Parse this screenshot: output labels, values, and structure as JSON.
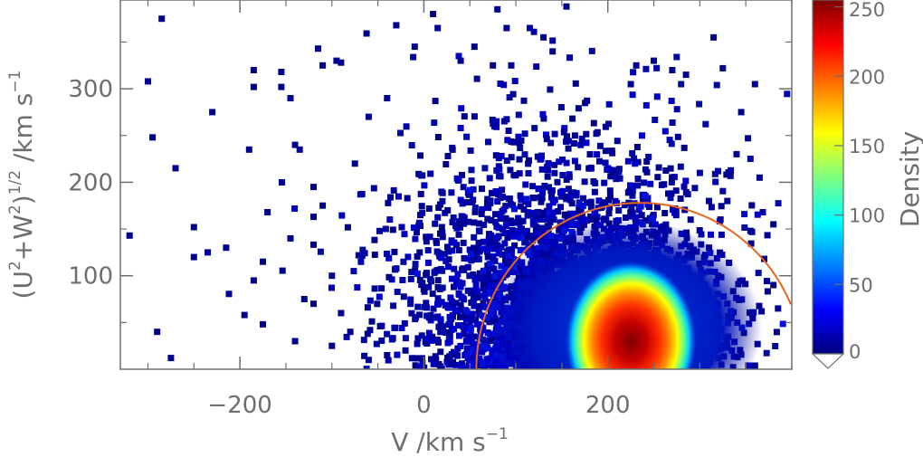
{
  "chart_data": {
    "type": "heatmap",
    "title": "",
    "xlabel": {
      "main": "V /km s",
      "sup": "−1"
    },
    "ylabel": {
      "p1": "(U",
      "s1": "2",
      "p2": "+W",
      "s2": "2",
      "p3": ")",
      "s3": "1/2",
      "p4": " /km s",
      "s4": "−1"
    },
    "xlim": [
      -330,
      400
    ],
    "ylim": [
      0,
      395
    ],
    "x_ticks": [
      -200,
      0,
      200
    ],
    "x_tick_labels": [
      "−200",
      "0",
      "200"
    ],
    "y_ticks": [
      100,
      200,
      300
    ],
    "y_tick_labels": [
      "100",
      "200",
      "300"
    ],
    "colorbar": {
      "label": "Density",
      "range": [
        0,
        255
      ],
      "ticks": [
        0,
        50,
        100,
        150,
        200,
        250
      ],
      "tick_labels": [
        "0",
        "50",
        "100",
        "150",
        "200",
        "250"
      ],
      "colormap": [
        "#00007f",
        "#0000ff",
        "#0080ff",
        "#00ffff",
        "#80ff80",
        "#ffff00",
        "#ff8000",
        "#ff0000",
        "#7f0000"
      ]
    },
    "density_peak": {
      "x": 225,
      "y": 30,
      "value": 250
    },
    "curve": {
      "type": "semicircle",
      "center_x": 235,
      "center_y": 0,
      "radius": 178,
      "color": "#e8671f"
    },
    "outlier_points": [
      [
        -285,
        375
      ],
      [
        -300,
        308
      ],
      [
        -295,
        248
      ],
      [
        -270,
        215
      ],
      [
        -230,
        275
      ],
      [
        -190,
        235
      ],
      [
        -185,
        302
      ],
      [
        -185,
        320
      ],
      [
        -155,
        318
      ],
      [
        -155,
        302
      ],
      [
        -145,
        290
      ],
      [
        -115,
        343
      ],
      [
        -110,
        325
      ],
      [
        -90,
        328
      ],
      [
        -250,
        152
      ],
      [
        -215,
        130
      ],
      [
        -250,
        120
      ],
      [
        -235,
        125
      ],
      [
        -195,
        58
      ],
      [
        -185,
        95
      ],
      [
        -175,
        48
      ],
      [
        -290,
        40
      ],
      [
        -275,
        12
      ],
      [
        -320,
        143
      ],
      [
        -175,
        115
      ],
      [
        -170,
        168
      ],
      [
        -140,
        240
      ],
      [
        -135,
        235
      ],
      [
        -120,
        195
      ],
      [
        -120,
        163
      ],
      [
        -110,
        175
      ],
      [
        -145,
        140
      ],
      [
        -100,
        100
      ],
      [
        -95,
        330
      ],
      [
        -30,
        368
      ],
      [
        -10,
        345
      ],
      [
        10,
        380
      ],
      [
        15,
        365
      ],
      [
        80,
        385
      ],
      [
        155,
        388
      ],
      [
        315,
        355
      ],
      [
        325,
        322
      ],
      [
        360,
        305
      ],
      [
        345,
        275
      ],
      [
        250,
        330
      ],
      [
        270,
        320
      ],
      [
        285,
        315
      ],
      [
        225,
        305
      ],
      [
        340,
        230
      ],
      [
        365,
        205
      ],
      [
        380,
        155
      ],
      [
        355,
        148
      ],
      [
        370,
        118
      ],
      [
        380,
        90
      ],
      [
        385,
        65
      ],
      [
        40,
        330
      ],
      [
        55,
        345
      ],
      [
        75,
        325
      ],
      [
        140,
        340
      ],
      [
        130,
        355
      ],
      [
        90,
        365
      ],
      [
        95,
        325
      ],
      [
        -60,
        270
      ],
      [
        -40,
        290
      ],
      [
        -75,
        220
      ],
      [
        -130,
        75
      ],
      [
        -120,
        70
      ],
      [
        -90,
        60
      ],
      [
        -80,
        40
      ],
      [
        -140,
        30
      ],
      [
        -100,
        25
      ],
      [
        -60,
        10
      ],
      [
        -40,
        15
      ],
      [
        -20,
        20
      ],
      [
        300,
        210
      ],
      [
        310,
        180
      ],
      [
        330,
        180
      ],
      [
        290,
        160
      ],
      [
        310,
        130
      ],
      [
        320,
        100
      ],
      [
        330,
        70
      ],
      [
        295,
        40
      ],
      [
        290,
        20
      ],
      [
        265,
        10
      ]
    ]
  }
}
